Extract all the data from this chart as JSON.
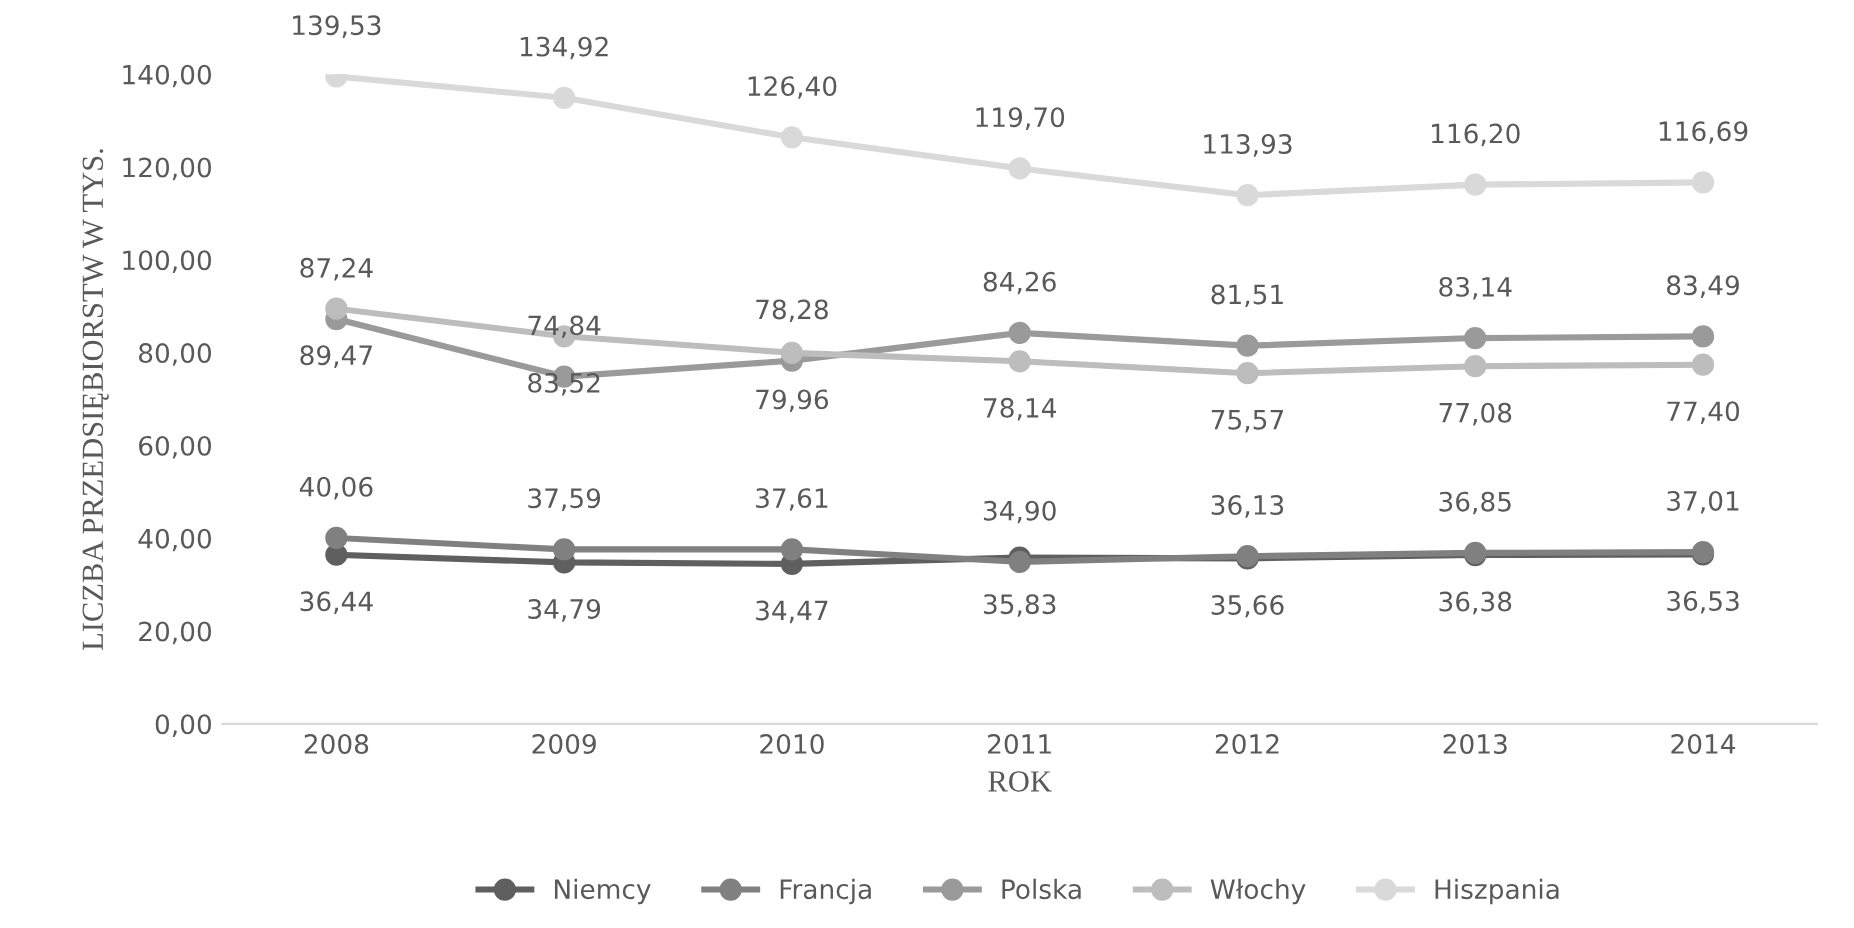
{
  "chart_data": {
    "type": "line",
    "xlabel": "ROK",
    "ylabel": "LICZBA PRZEDSIĘBIORSTW W TYS.",
    "categories": [
      "2008",
      "2009",
      "2010",
      "2011",
      "2012",
      "2013",
      "2014"
    ],
    "series": [
      {
        "name": "Niemcy",
        "color": "#5f5f5f",
        "values": [
          36.44,
          34.79,
          34.47,
          35.83,
          35.66,
          36.38,
          36.53
        ],
        "value_labels": [
          "36,44",
          "34,79",
          "34,47",
          "35,83",
          "35,66",
          "36,38",
          "36,53"
        ]
      },
      {
        "name": "Francja",
        "color": "#808080",
        "values": [
          40.06,
          37.59,
          37.61,
          34.9,
          36.13,
          36.85,
          37.01
        ],
        "value_labels": [
          "40,06",
          "37,59",
          "37,61",
          "34,90",
          "36,13",
          "36,85",
          "37,01"
        ]
      },
      {
        "name": "Polska",
        "color": "#9a9a9a",
        "values": [
          87.24,
          74.84,
          78.28,
          84.26,
          81.51,
          83.14,
          83.49
        ],
        "value_labels": [
          "87,24",
          "74,84",
          "78,28",
          "84,26",
          "81,51",
          "83,14",
          "83,49"
        ]
      },
      {
        "name": "Włochy",
        "color": "#bdbdbd",
        "values": [
          89.47,
          83.52,
          79.96,
          78.14,
          75.57,
          77.08,
          77.4
        ],
        "value_labels": [
          "89,47",
          "83,52",
          "79,96",
          "78,14",
          "75,57",
          "77,08",
          "77,40"
        ]
      },
      {
        "name": "Hiszpania",
        "color": "#d9d9d9",
        "values": [
          139.53,
          134.92,
          126.4,
          119.7,
          113.93,
          116.2,
          116.69
        ],
        "value_labels": [
          "139,53",
          "134,92",
          "126,40",
          "119,70",
          "113,93",
          "116,20",
          "116,69"
        ]
      }
    ],
    "ylim": [
      0,
      140
    ],
    "yticks": [
      {
        "value": 0,
        "label": "0,00"
      },
      {
        "value": 20,
        "label": "20,00"
      },
      {
        "value": 40,
        "label": "40,00"
      },
      {
        "value": 60,
        "label": "60,00"
      },
      {
        "value": 80,
        "label": "80,00"
      },
      {
        "value": 100,
        "label": "100,00"
      },
      {
        "value": 120,
        "label": "120,00"
      },
      {
        "value": 140,
        "label": "140,00"
      }
    ],
    "marker": "circle",
    "line_style": "solid",
    "legend": "bottom",
    "grid": false
  }
}
